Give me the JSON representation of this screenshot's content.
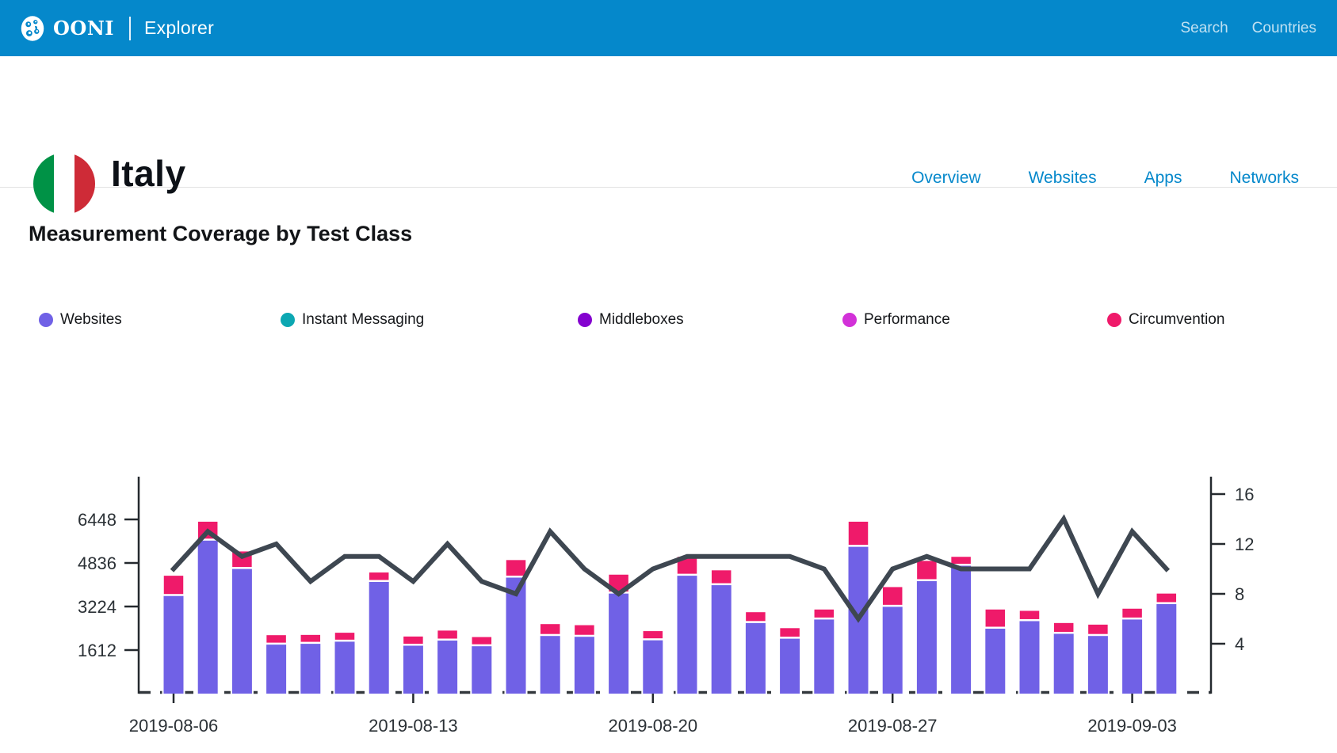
{
  "header": {
    "brand": "OONI",
    "brand_suffix": "Explorer",
    "bg_color": "#0588cb",
    "nav": [
      {
        "label": "Search"
      },
      {
        "label": "Countries"
      }
    ]
  },
  "country": {
    "name": "Italy",
    "flag_colors": {
      "green": "#009246",
      "white": "#ffffff",
      "red": "#ce2b37"
    },
    "nav": [
      {
        "label": "Overview"
      },
      {
        "label": "Websites"
      },
      {
        "label": "Apps"
      },
      {
        "label": "Networks"
      }
    ]
  },
  "section": {
    "title": "Measurement Coverage by Test Class"
  },
  "legend": {
    "items": [
      {
        "label": "Websites",
        "color": "#7061e6"
      },
      {
        "label": "Instant Messaging",
        "color": "#0ca7b2"
      },
      {
        "label": "Middleboxes",
        "color": "#8402cf"
      },
      {
        "label": "Performance",
        "color": "#d231d8"
      },
      {
        "label": "Circumvention",
        "color": "#ef1a6a"
      }
    ]
  },
  "chart_data": {
    "type": "bar",
    "title": "Measurement Coverage by Test Class",
    "x": [
      "2019-08-06",
      "2019-08-07",
      "2019-08-08",
      "2019-08-09",
      "2019-08-10",
      "2019-08-11",
      "2019-08-12",
      "2019-08-13",
      "2019-08-14",
      "2019-08-15",
      "2019-08-16",
      "2019-08-17",
      "2019-08-18",
      "2019-08-19",
      "2019-08-20",
      "2019-08-21",
      "2019-08-22",
      "2019-08-23",
      "2019-08-24",
      "2019-08-25",
      "2019-08-26",
      "2019-08-27",
      "2019-08-28",
      "2019-08-29",
      "2019-08-30",
      "2019-08-31",
      "2019-09-01",
      "2019-09-02",
      "2019-09-03",
      "2019-09-04"
    ],
    "series": [
      {
        "name": "Websites",
        "type": "bar",
        "stack": true,
        "axis": "left",
        "color": "#7061e6",
        "values": [
          3650,
          5700,
          4650,
          1850,
          1880,
          1960,
          4170,
          1810,
          2000,
          1790,
          4330,
          2170,
          2140,
          3740,
          2010,
          4400,
          4050,
          2650,
          2070,
          2780,
          5470,
          3250,
          4200,
          4770,
          2440,
          2720,
          2250,
          2170,
          2780,
          3350
        ]
      },
      {
        "name": "Circumvention",
        "type": "bar",
        "stack": true,
        "axis": "left",
        "color": "#ef1a6a",
        "values": [
          750,
          700,
          650,
          350,
          330,
          330,
          350,
          340,
          370,
          340,
          650,
          440,
          430,
          700,
          340,
          700,
          550,
          400,
          390,
          370,
          930,
          730,
          750,
          330,
          710,
          380,
          400,
          420,
          400,
          390
        ]
      },
      {
        "name": "line-overlay",
        "type": "line",
        "axis": "right",
        "color": "#3e4751",
        "values": [
          10,
          13,
          11,
          12,
          9,
          11,
          11,
          9,
          12,
          9,
          8,
          13,
          10,
          8,
          10,
          11,
          11,
          11,
          11,
          10,
          6,
          10,
          11,
          10,
          10,
          10,
          14,
          8,
          13,
          10
        ]
      }
    ],
    "left_axis": {
      "ticks": [
        1612,
        3224,
        4836,
        6448
      ],
      "range": [
        0,
        7900
      ]
    },
    "right_axis": {
      "ticks": [
        4,
        8,
        12,
        16
      ],
      "range": [
        0,
        17.4
      ]
    },
    "x_ticks": [
      {
        "index": 0,
        "label": "2019-08-06"
      },
      {
        "index": 7,
        "label": "2019-08-13"
      },
      {
        "index": 14,
        "label": "2019-08-20"
      },
      {
        "index": 21,
        "label": "2019-08-27"
      },
      {
        "index": 28,
        "label": "2019-09-03"
      }
    ],
    "grid": false,
    "legend_position": "top"
  }
}
